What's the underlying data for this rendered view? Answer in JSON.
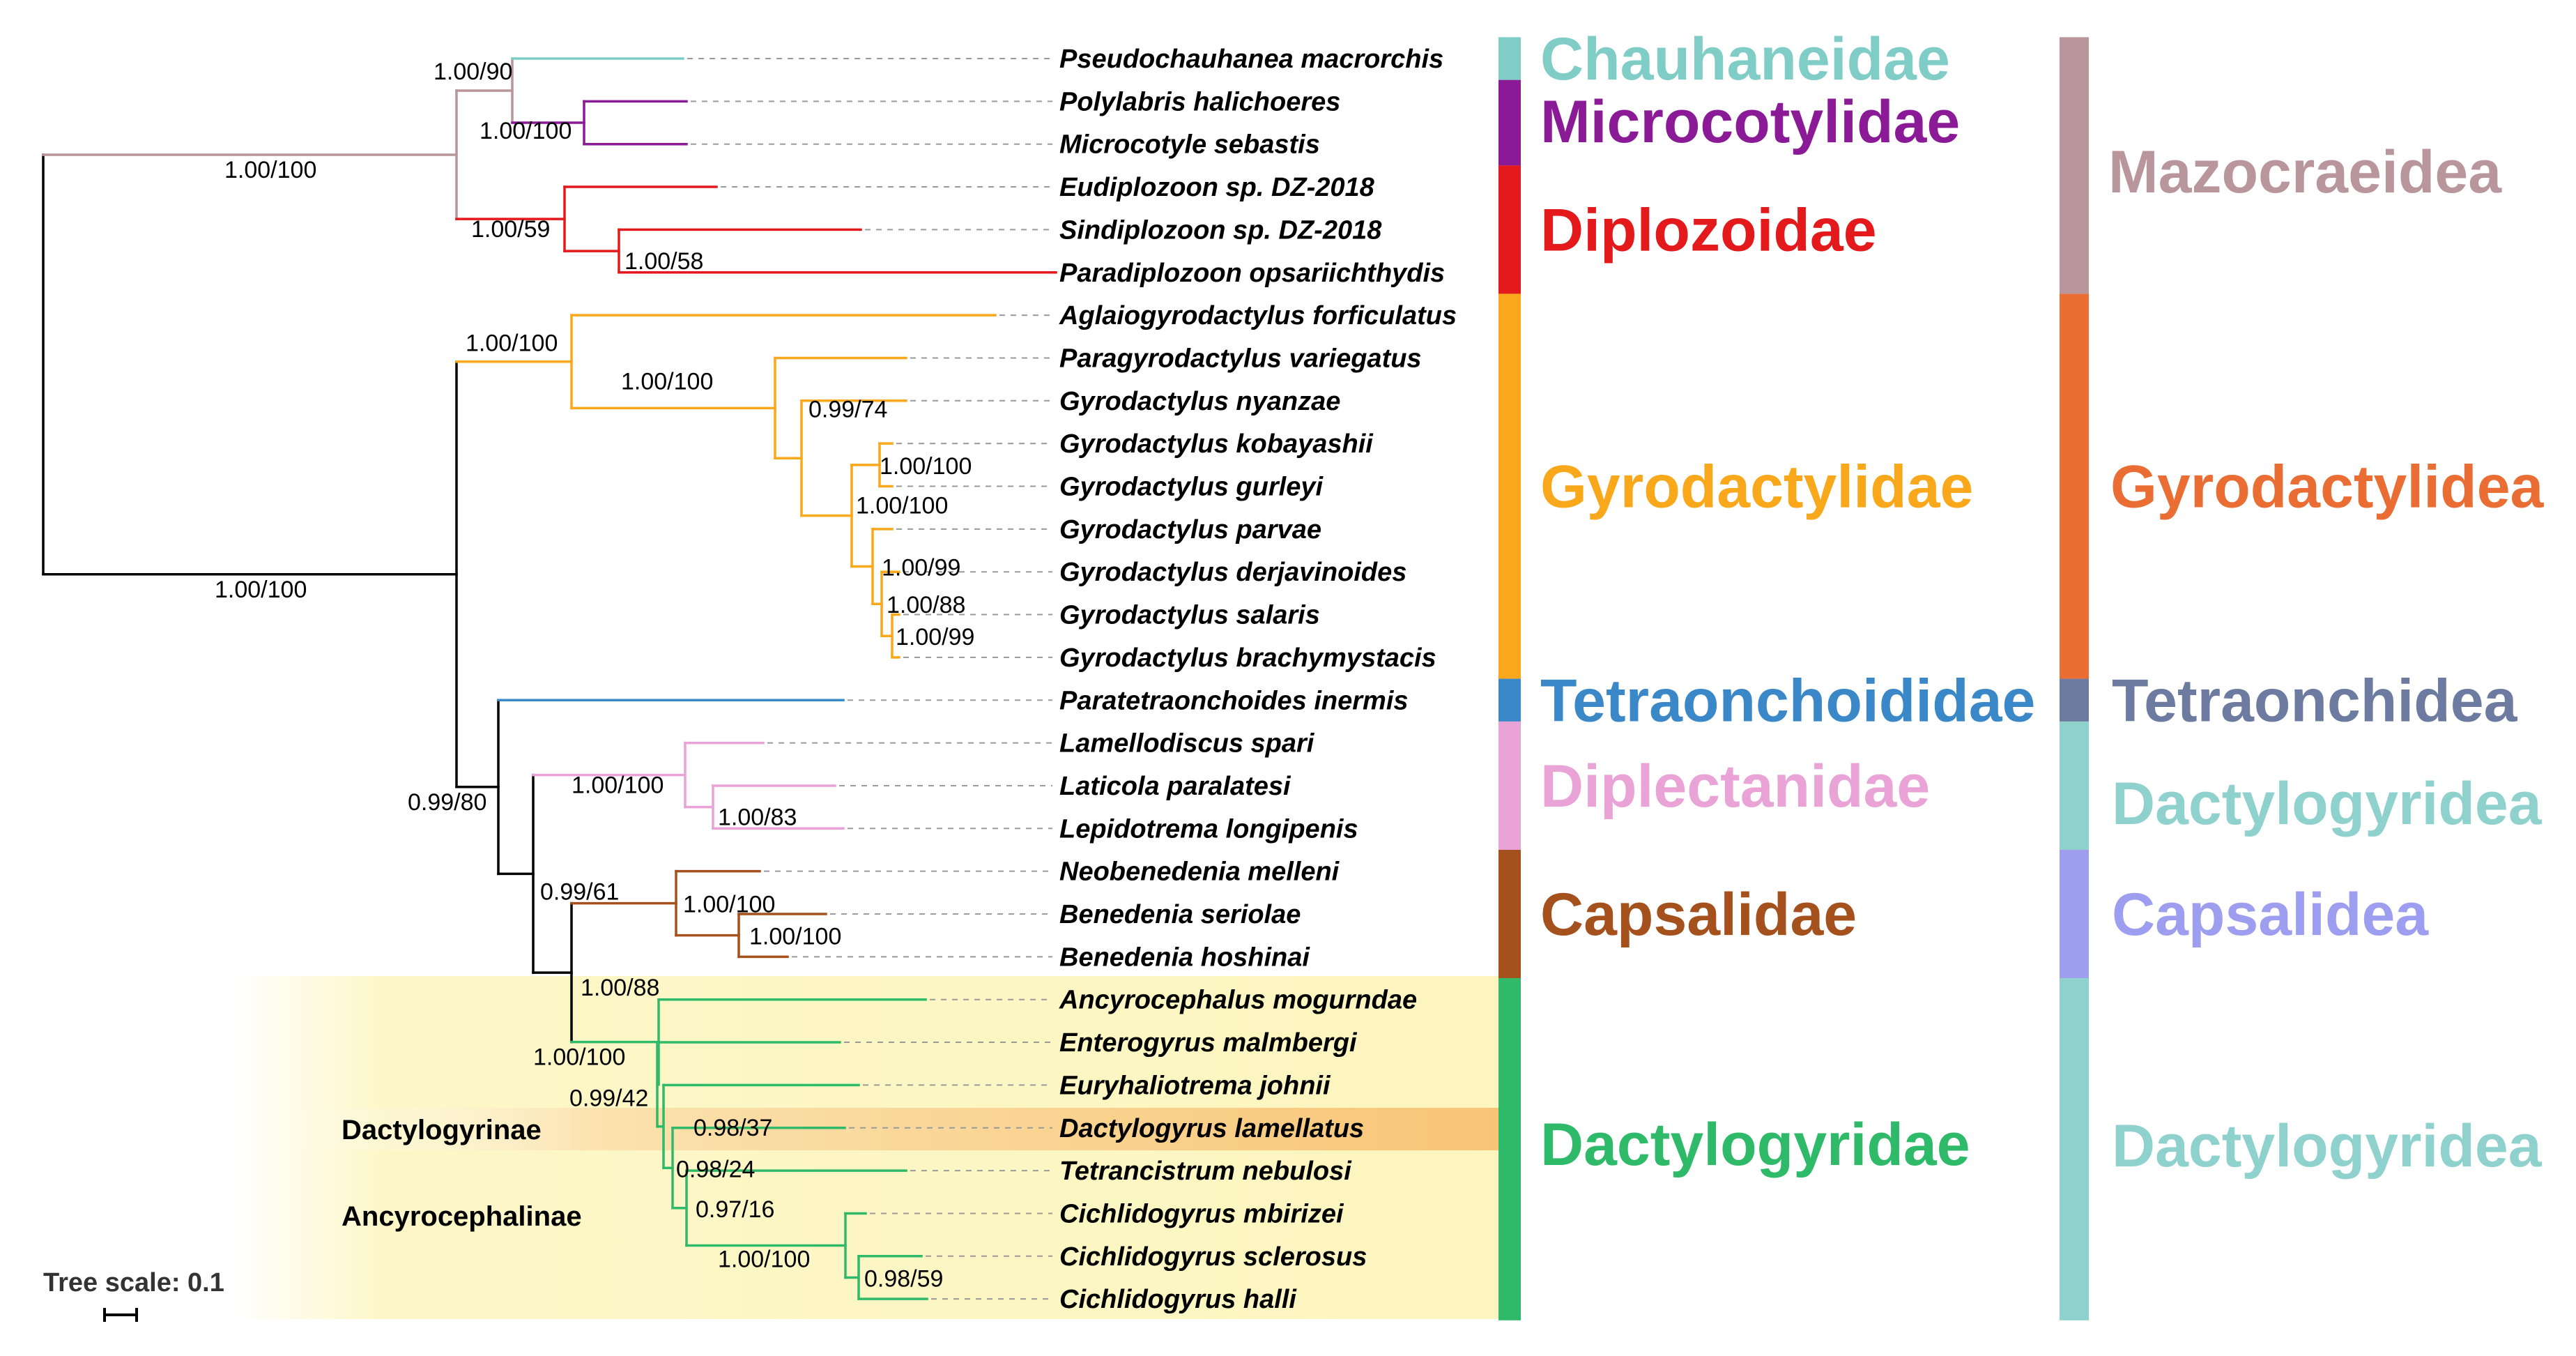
{
  "taxa": [
    "Pseudochauhanea macrorchis",
    "Polylabris halichoeres",
    "Microcotyle sebastis",
    "Eudiplozoon sp. DZ-2018",
    "Sindiplozoon sp. DZ-2018",
    "Paradiplozoon opsariichthydis",
    "Aglaiogyrodactylus forficulatus",
    "Paragyrodactylus variegatus",
    "Gyrodactylus nyanzae",
    "Gyrodactylus kobayashii",
    "Gyrodactylus gurleyi",
    "Gyrodactylus parvae",
    "Gyrodactylus derjavinoides",
    "Gyrodactylus salaris",
    "Gyrodactylus brachymystacis",
    "Paratetraonchoides inermis",
    "Lamellodiscus spari",
    "Laticola paralatesi",
    "Lepidotrema longipenis",
    "Neobenedenia melleni",
    "Benedenia seriolae",
    "Benedenia hoshinai",
    "Ancyrocephalus mogurndae",
    "Enterogyrus malmbergi",
    "Euryhaliotrema johnii",
    "Dactylogyrus lamellatus",
    "Tetrancistrum nebulosi",
    "Cichlidogyrus mbirizei",
    "Cichlidogyrus sclerosus",
    "Cichlidogyrus halli"
  ],
  "supports": [
    "1.00/90",
    "1.00/100",
    "1.00/100",
    "1.00/59",
    "1.00/58",
    "1.00/100",
    "0.99/74",
    "1.00/100",
    "1.00/100",
    "1.00/100",
    "1.00/99",
    "1.00/88",
    "1.00/99",
    "1.00/100",
    "0.99/80",
    "1.00/100",
    "1.00/83",
    "0.99/61",
    "1.00/100",
    "1.00/100",
    "1.00/88",
    "1.00/100",
    "0.99/42",
    "0.98/37",
    "0.98/24",
    "0.97/16",
    "1.00/100",
    "0.98/59"
  ],
  "families": [
    {
      "name": "Chauhaneidae",
      "color": "#7fcdc6"
    },
    {
      "name": "Microcotylidae",
      "color": "#8b1a96"
    },
    {
      "name": "Diplozoidae",
      "color": "#e3191c"
    },
    {
      "name": "Gyrodactylidae",
      "color": "#f8a81a"
    },
    {
      "name": "Tetraonchoididae",
      "color": "#3b88c8"
    },
    {
      "name": "Diplectanidae",
      "color": "#e9a3d7"
    },
    {
      "name": "Capsalidae",
      "color": "#a4511e"
    },
    {
      "name": "Dactylogyridae",
      "color": "#2fba6a"
    }
  ],
  "orders": [
    {
      "name": "Mazocraeidea",
      "color": "#b9969c"
    },
    {
      "name": "Gyrodactylidea",
      "color": "#ea6e34"
    },
    {
      "name": "Tetraonchidea",
      "color": "#6c7b9f"
    },
    {
      "name": "Dactylogyridea",
      "color": "#8fd1cc"
    },
    {
      "name": "Capsalidea",
      "color": "#9e9ef0"
    },
    {
      "name": "Dactylogyridea",
      "color": "#8fd1cc"
    }
  ],
  "subfamilies": [
    "Dactylogyrinae",
    "Ancyrocephalinae"
  ],
  "tree_scale_label": "Tree scale: 0.1",
  "colors": {
    "highlight_bg": "#fdf7c8",
    "dactylogyrinae_highlight": "#f8c97a",
    "backbone": "#000000"
  }
}
